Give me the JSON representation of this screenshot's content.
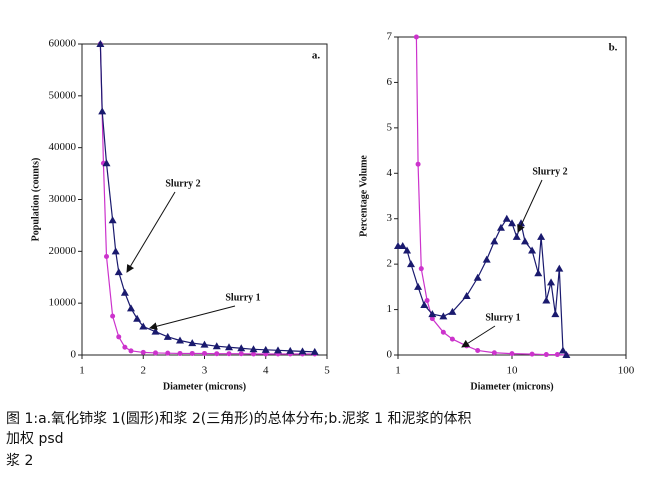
{
  "chart_data": [
    {
      "type": "line",
      "panel_label": "a.",
      "xlabel": "Diameter (microns)",
      "ylabel": "Population (counts)",
      "xlim": [
        1,
        5
      ],
      "xticks": [
        1,
        2,
        3,
        4,
        5
      ],
      "ylim": [
        0,
        60000
      ],
      "yticks": [
        0,
        10000,
        20000,
        30000,
        40000,
        50000,
        60000
      ],
      "log_x": false,
      "annotations": [
        "Slurry 2",
        "Slurry 1"
      ],
      "series": [
        {
          "name": "Slurry 1",
          "color": "#cc33cc",
          "marker": "circle",
          "x": [
            1.3,
            1.35,
            1.4,
            1.5,
            1.6,
            1.7,
            1.8,
            2.0,
            2.2,
            2.4,
            2.6,
            2.8,
            3.0,
            3.2,
            3.4,
            3.6,
            3.8,
            4.0,
            4.2,
            4.4,
            4.6,
            4.8
          ],
          "values": [
            60000,
            37000,
            19000,
            7500,
            3500,
            1500,
            800,
            500,
            400,
            350,
            300,
            300,
            300,
            250,
            250,
            250,
            200,
            200,
            200,
            200,
            200,
            200
          ]
        },
        {
          "name": "Slurry 2",
          "color": "#1a1a6e",
          "marker": "triangle",
          "x": [
            1.3,
            1.33,
            1.4,
            1.5,
            1.55,
            1.6,
            1.7,
            1.8,
            1.9,
            2.0,
            2.2,
            2.4,
            2.6,
            2.8,
            3.0,
            3.2,
            3.4,
            3.6,
            3.8,
            4.0,
            4.2,
            4.4,
            4.6,
            4.8
          ],
          "values": [
            60000,
            47000,
            37000,
            26000,
            20000,
            16000,
            12000,
            9000,
            7000,
            5500,
            4500,
            3500,
            2800,
            2300,
            2000,
            1700,
            1500,
            1300,
            1100,
            1000,
            900,
            800,
            700,
            600
          ]
        }
      ]
    },
    {
      "type": "line",
      "panel_label": "b.",
      "xlabel": "Diameter (microns)",
      "ylabel": "Percentage Volume",
      "xlim": [
        1,
        100
      ],
      "xticks": [
        1,
        10,
        100
      ],
      "ylim": [
        0,
        7
      ],
      "yticks": [
        0,
        1,
        2,
        3,
        4,
        5,
        6,
        7
      ],
      "log_x": true,
      "annotations": [
        "Slurry 2",
        "Slurry 1"
      ],
      "series": [
        {
          "name": "Slurry 1",
          "color": "#cc33cc",
          "marker": "circle",
          "x": [
            1.45,
            1.5,
            1.6,
            1.8,
            2,
            2.5,
            3,
            4,
            5,
            7,
            10,
            15,
            20,
            25,
            30
          ],
          "values": [
            7,
            4.2,
            1.9,
            1.2,
            0.8,
            0.5,
            0.35,
            0.2,
            0.1,
            0.05,
            0.03,
            0.02,
            0.01,
            0.01,
            0
          ]
        },
        {
          "name": "Slurry 2",
          "color": "#1a1a6e",
          "marker": "triangle",
          "x": [
            1,
            1.1,
            1.2,
            1.3,
            1.5,
            1.7,
            2,
            2.5,
            3,
            4,
            5,
            6,
            7,
            8,
            9,
            10,
            11,
            12,
            13,
            15,
            17,
            18,
            20,
            22,
            24,
            26,
            28,
            30
          ],
          "values": [
            2.4,
            2.4,
            2.3,
            2.0,
            1.5,
            1.1,
            0.9,
            0.85,
            0.95,
            1.3,
            1.7,
            2.1,
            2.5,
            2.8,
            3.0,
            2.9,
            2.6,
            2.9,
            2.5,
            2.3,
            1.8,
            2.6,
            1.2,
            1.6,
            0.9,
            1.9,
            0.1,
            0
          ]
        }
      ]
    }
  ],
  "caption": [
    "图 1:a.氧化铈浆 1(圆形)和浆 2(三角形)的总体分布;b.泥浆 1 和泥浆的体积",
    "加权 psd",
    "浆 2"
  ]
}
